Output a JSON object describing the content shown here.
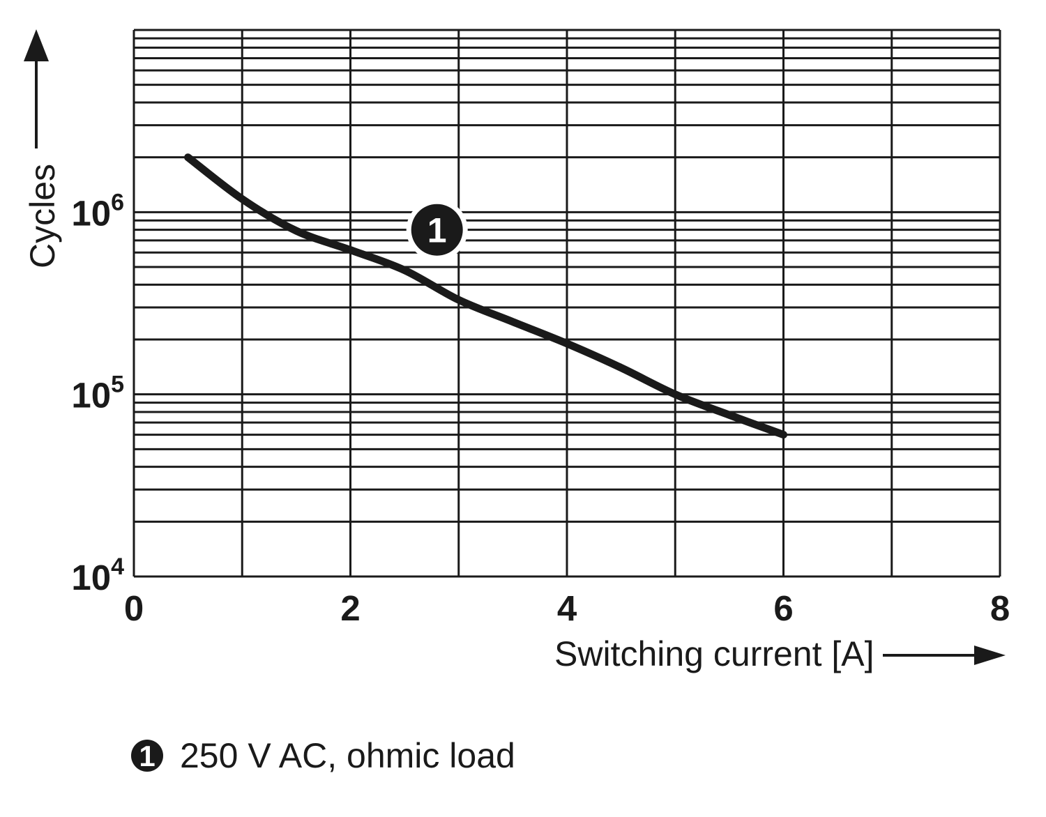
{
  "chart_data": {
    "type": "line",
    "title": "",
    "xlabel": "Switching current [A]",
    "ylabel": "Cycles",
    "x_range": [
      0,
      8
    ],
    "y_range": [
      10000,
      10000000
    ],
    "y_scale": "log",
    "x_gridline_step": 1,
    "grid": "full log grid with minor decade lines, all lines equal weight",
    "legend_position": "below chart",
    "x_ticks": [
      {
        "label": "0",
        "value": 0
      },
      {
        "label": "2",
        "value": 2
      },
      {
        "label": "4",
        "value": 4
      },
      {
        "label": "6",
        "value": 6
      },
      {
        "label": "8",
        "value": 8
      }
    ],
    "y_ticks": [
      {
        "base": "10",
        "exp": "4",
        "value": 10000
      },
      {
        "base": "10",
        "exp": "5",
        "value": 100000
      },
      {
        "base": "10",
        "exp": "6",
        "value": 1000000
      }
    ],
    "series": [
      {
        "name": "250 V AC, ohmic load",
        "marker_label": "1",
        "x": [
          0.5,
          1.0,
          1.5,
          2.0,
          2.5,
          3.0,
          3.5,
          4.0,
          4.5,
          5.0,
          5.5,
          6.0
        ],
        "y": [
          2000000,
          1180000,
          790000,
          620000,
          480000,
          330000,
          250000,
          190000,
          140000,
          100000,
          77000,
          60000
        ]
      }
    ],
    "marker": {
      "label": "1",
      "x": 2.8,
      "y": 800000
    }
  },
  "legend": {
    "symbol": "1",
    "text": "250 V AC, ohmic load"
  },
  "colors": {
    "ink": "#1a1a1a",
    "background": "#ffffff"
  }
}
